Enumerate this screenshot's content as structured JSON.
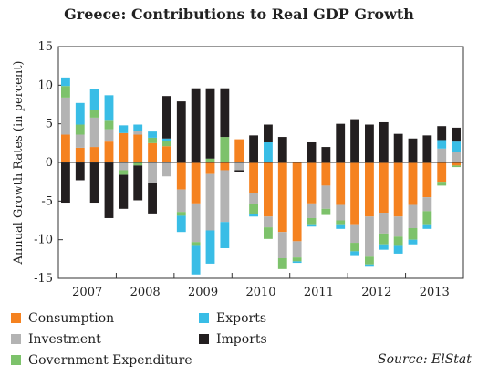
{
  "chart_data": {
    "type": "bar",
    "stacked": true,
    "title": "Greece: Contributions to Real GDP Growth",
    "ylabel": "Annual Growth Rates (in percent)",
    "xlabel": "",
    "ylim": [
      -15,
      15
    ],
    "yticks": [
      -15,
      -10,
      -5,
      0,
      5,
      10,
      15
    ],
    "year_labels": [
      "2007",
      "2008",
      "2009",
      "2010",
      "2011",
      "2012",
      "2013"
    ],
    "quarters": [
      "2007Q1",
      "2007Q2",
      "2007Q3",
      "2007Q4",
      "2008Q1",
      "2008Q2",
      "2008Q3",
      "2008Q4",
      "2009Q1",
      "2009Q2",
      "2009Q3",
      "2009Q4",
      "2010Q1",
      "2010Q2",
      "2010Q3",
      "2010Q4",
      "2011Q1",
      "2011Q2",
      "2011Q3",
      "2011Q4",
      "2012Q1",
      "2012Q2",
      "2012Q3",
      "2012Q4",
      "2013Q1",
      "2013Q2",
      "2013Q3",
      "2013Q4"
    ],
    "series": [
      {
        "name": "Consumption",
        "color": "#f58220",
        "values": [
          3.6,
          1.9,
          2.0,
          2.7,
          3.8,
          3.6,
          2.5,
          2.1,
          -3.5,
          -5.3,
          -1.5,
          -1.0,
          3.0,
          -4.0,
          -7.0,
          -9.0,
          -10.2,
          -5.3,
          -3.0,
          -5.5,
          -8.0,
          -7.0,
          -6.5,
          -7.0,
          -5.5,
          -4.5,
          -2.5,
          -0.4
        ]
      },
      {
        "name": "Investment",
        "color": "#b3b3b3",
        "values": [
          4.8,
          1.7,
          3.8,
          1.6,
          -1.0,
          0.5,
          -2.6,
          -1.8,
          -2.9,
          -5.0,
          -7.3,
          -6.7,
          -1.0,
          -1.4,
          -1.4,
          -3.4,
          -2.1,
          -1.9,
          -3.0,
          -2.0,
          -2.4,
          -5.2,
          -2.7,
          -2.6,
          -3.0,
          -1.8,
          1.8,
          1.3
        ]
      },
      {
        "name": "Government Expenditure",
        "color": "#7dc26b",
        "values": [
          1.5,
          1.3,
          1.0,
          1.1,
          -0.6,
          -0.4,
          0.7,
          0.7,
          -0.5,
          -0.5,
          0.5,
          3.3,
          0,
          -1.3,
          -1.5,
          -1.4,
          -0.5,
          -0.8,
          -0.8,
          -0.5,
          -1.1,
          -1.0,
          -1.4,
          -1.2,
          -1.5,
          -1.7,
          -0.5,
          -0.2
        ]
      },
      {
        "name": "Exports",
        "color": "#39bde6",
        "values": [
          1.1,
          2.8,
          2.7,
          3.3,
          1.0,
          0.8,
          0.8,
          0.3,
          -2.1,
          -3.7,
          -4.3,
          -3.4,
          0,
          -0.3,
          2.6,
          0.0,
          -0.2,
          -0.3,
          0.0,
          -0.6,
          -0.5,
          -0.3,
          -0.7,
          -1.0,
          -0.6,
          -0.6,
          1.1,
          1.4
        ]
      },
      {
        "name": "Imports",
        "color": "#231f20",
        "values": [
          -5.2,
          -2.3,
          -5.2,
          -7.2,
          -4.4,
          -4.5,
          -4.0,
          5.5,
          7.9,
          9.6,
          9.1,
          6.3,
          -0.2,
          3.5,
          2.3,
          3.3,
          0.0,
          2.6,
          2.0,
          5.0,
          5.6,
          4.9,
          5.2,
          3.7,
          3.1,
          3.5,
          1.8,
          1.8
        ]
      }
    ],
    "legend": [
      {
        "name": "Consumption",
        "color": "#f58220"
      },
      {
        "name": "Exports",
        "color": "#39bde6"
      },
      {
        "name": "Investment",
        "color": "#b3b3b3"
      },
      {
        "name": "Imports",
        "color": "#231f20"
      },
      {
        "name": "Government Expenditure",
        "color": "#7dc26b"
      }
    ],
    "grid": false,
    "source": "Source: ElStat"
  }
}
